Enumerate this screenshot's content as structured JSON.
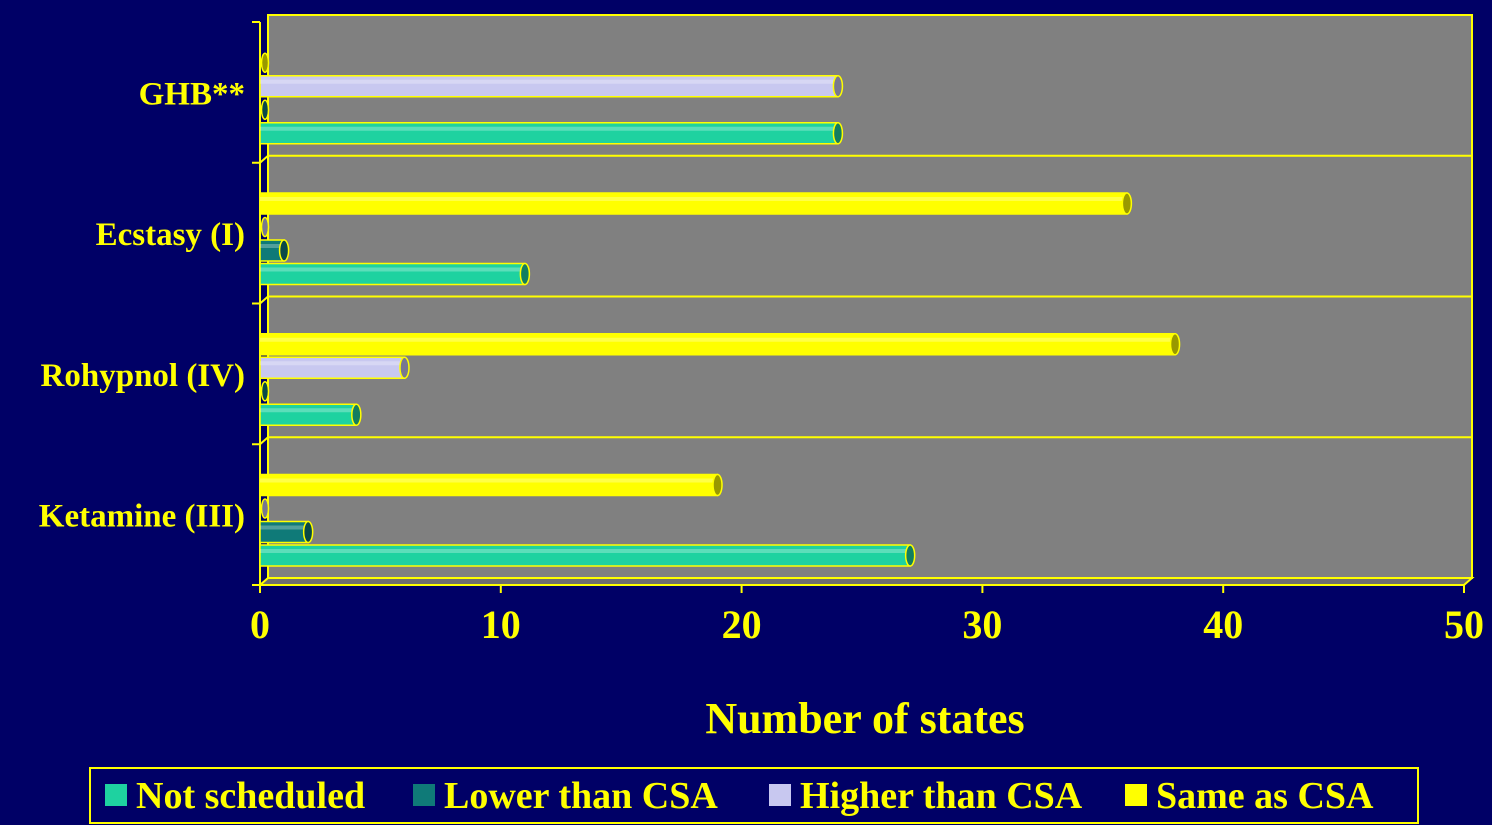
{
  "chart_data": {
    "type": "bar",
    "orientation": "horizontal",
    "categories": [
      "Ketamine (III)",
      "Rohypnol (IV)",
      "Ecstasy (I)",
      "GHB**"
    ],
    "series": [
      {
        "name": "Not scheduled",
        "color": "#1ed2a0",
        "values": [
          27,
          4,
          11,
          24
        ]
      },
      {
        "name": "Lower than CSA",
        "color": "#0f7a78",
        "values": [
          2,
          0,
          1,
          0
        ]
      },
      {
        "name": "Higher than CSA",
        "color": "#c8c8f0",
        "values": [
          0,
          6,
          0,
          24
        ]
      },
      {
        "name": "Same as CSA",
        "color": "#ffff00",
        "values": [
          19,
          38,
          36,
          0
        ]
      }
    ],
    "xlabel": "Number of states",
    "xlim": [
      0,
      50
    ],
    "xticks": [
      "0",
      "10",
      "20",
      "30",
      "40",
      "50"
    ],
    "plot_background": "#808080",
    "grid": true,
    "legend_position": "bottom"
  }
}
